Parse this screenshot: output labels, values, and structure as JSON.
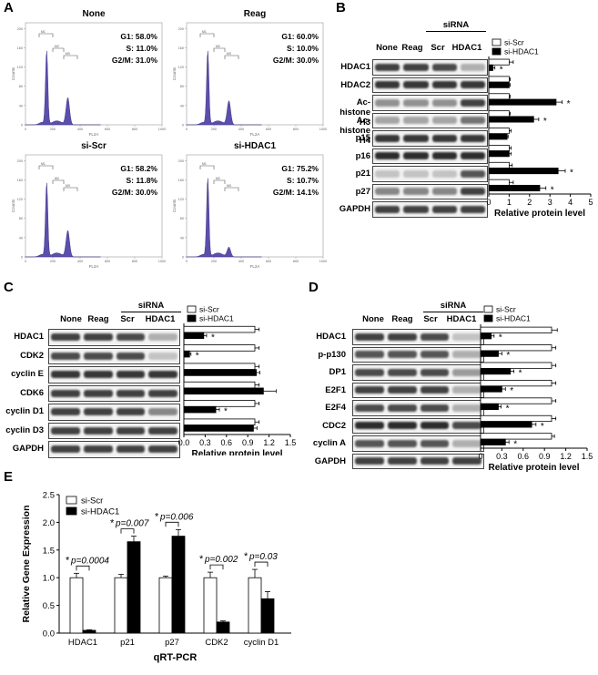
{
  "panels": {
    "a": {
      "letter": "A",
      "plots": [
        {
          "title": "None",
          "g1": "G1: 58.0%",
          "s": "S: 11.0%",
          "g2m": "G2/M: 31.0%"
        },
        {
          "title": "Reag",
          "g1": "G1: 60.0%",
          "s": "S: 10.0%",
          "g2m": "G2/M: 30.0%"
        },
        {
          "title": "si-Scr",
          "g1": "G1: 58.2%",
          "s": "S: 11.8%",
          "g2m": "G2/M: 30.0%"
        },
        {
          "title": "si-HDAC1",
          "g1": "G1: 75.2%",
          "s": "S: 10.7%",
          "g2m": "G2/M: 14.1%"
        }
      ],
      "axis_label_y": "Counts",
      "axis_label_x": "FL2A",
      "y_ticks": [
        "0",
        "40",
        "80",
        "120",
        "160",
        "200"
      ],
      "x_ticks": [
        "0",
        "200",
        "400",
        "600",
        "800",
        "1000"
      ],
      "gate_labels": [
        "M1",
        "M2",
        "M3"
      ],
      "peak_color": "#5b4fae"
    },
    "b": {
      "letter": "B",
      "sirna_label": "siRNA",
      "columns": [
        "None",
        "Reag",
        "Scr",
        "HDAC1"
      ],
      "rows": [
        "HDAC1",
        "HDAC2",
        "Ac-histone H3",
        "Ac-histone H4",
        "p15",
        "p16",
        "p21",
        "p27",
        "GAPDH"
      ],
      "legend": [
        "si-Scr",
        "si-HDAC1"
      ]
    },
    "c": {
      "letter": "C",
      "sirna_label": "siRNA",
      "columns": [
        "None",
        "Reag",
        "Scr",
        "HDAC1"
      ],
      "rows": [
        "HDAC1",
        "CDK2",
        "cyclin E",
        "CDK6",
        "cyclin D1",
        "cyclin D3",
        "GAPDH"
      ],
      "legend": [
        "si-Scr",
        "si-HDAC1"
      ]
    },
    "d": {
      "letter": "D",
      "sirna_label": "siRNA",
      "columns": [
        "None",
        "Reag",
        "Scr",
        "HDAC1"
      ],
      "rows": [
        "HDAC1",
        "p-p130",
        "DP1",
        "E2F1",
        "E2F4",
        "CDC2",
        "cyclin A",
        "GAPDH"
      ],
      "legend": [
        "si-Scr",
        "si-HDAC1"
      ]
    },
    "e": {
      "letter": "E"
    }
  },
  "chart_data": [
    {
      "id": "b",
      "type": "bar",
      "orientation": "horizontal",
      "categories": [
        "HDAC1",
        "HDAC2",
        "Ac-histone H3",
        "Ac-histone H4",
        "p15",
        "p16",
        "p21",
        "p27"
      ],
      "series": [
        {
          "name": "si-Scr",
          "values": [
            1.0,
            1.0,
            1.0,
            1.0,
            1.0,
            1.0,
            1.0,
            1.0
          ],
          "errors": [
            0.2,
            0.05,
            0.05,
            0.05,
            0.1,
            0.1,
            0.15,
            0.2
          ]
        },
        {
          "name": "si-HDAC1",
          "values": [
            0.2,
            1.0,
            3.3,
            2.2,
            0.9,
            1.0,
            3.4,
            2.5
          ],
          "errors": [
            0.1,
            0.05,
            0.3,
            0.25,
            0.05,
            0.1,
            0.35,
            0.3
          ]
        }
      ],
      "significant": [
        true,
        false,
        true,
        true,
        false,
        false,
        true,
        true
      ],
      "xlabel": "Relative protein level",
      "x_ticks": [
        "0",
        "1",
        "2",
        "3",
        "4",
        "5"
      ],
      "xlim": [
        0,
        5
      ],
      "legend": "top-right"
    },
    {
      "id": "c",
      "type": "bar",
      "orientation": "horizontal",
      "categories": [
        "HDAC1",
        "CDK2",
        "cyclin E",
        "CDK6",
        "cyclin D1",
        "cyclin D3"
      ],
      "series": [
        {
          "name": "si-Scr",
          "values": [
            1.0,
            1.0,
            1.0,
            1.0,
            1.0,
            1.0
          ],
          "errors": [
            0.06,
            0.06,
            0.06,
            0.06,
            0.06,
            0.06
          ]
        },
        {
          "name": "si-HDAC1",
          "values": [
            0.28,
            0.08,
            1.02,
            1.12,
            0.45,
            0.98
          ],
          "errors": [
            0.04,
            0.02,
            0.05,
            0.18,
            0.05,
            0.05
          ]
        }
      ],
      "significant": [
        true,
        true,
        false,
        false,
        true,
        false
      ],
      "xlabel": "Relative protein level",
      "x_ticks": [
        "0.0",
        "0.3",
        "0.6",
        "0.9",
        "1.2",
        "1.5"
      ],
      "xlim": [
        0,
        1.5
      ],
      "legend": "top-right"
    },
    {
      "id": "d",
      "type": "bar",
      "orientation": "horizontal",
      "categories": [
        "HDAC1",
        "p-p130",
        "DP1",
        "E2F1",
        "E2F4",
        "CDC2",
        "cyclin A"
      ],
      "series": [
        {
          "name": "si-Scr",
          "values": [
            1.0,
            1.0,
            1.0,
            1.0,
            1.0,
            1.0,
            1.0
          ],
          "errors": [
            0.08,
            0.06,
            0.06,
            0.06,
            0.06,
            0.06,
            0.04
          ]
        },
        {
          "name": "si-HDAC1",
          "values": [
            0.15,
            0.25,
            0.42,
            0.3,
            0.25,
            0.72,
            0.35
          ],
          "errors": [
            0.04,
            0.05,
            0.05,
            0.05,
            0.04,
            0.06,
            0.05
          ]
        }
      ],
      "significant": [
        true,
        true,
        true,
        true,
        true,
        true,
        true
      ],
      "xlabel": "Relative protein level",
      "x_ticks": [
        "0",
        "0.3",
        "0.6",
        "0.9",
        "1.2",
        "1.5"
      ],
      "xlim": [
        0,
        1.5
      ],
      "legend": "top-right"
    },
    {
      "id": "e",
      "type": "bar",
      "categories": [
        "HDAC1",
        "p21",
        "p27",
        "CDK2",
        "cyclin D1"
      ],
      "series": [
        {
          "name": "si-Scr",
          "values": [
            1.0,
            1.0,
            1.0,
            1.0,
            1.0
          ],
          "errors": [
            0.08,
            0.06,
            0.03,
            0.1,
            0.15
          ]
        },
        {
          "name": "si-HDAC1",
          "values": [
            0.05,
            1.65,
            1.75,
            0.2,
            0.62
          ],
          "errors": [
            0.01,
            0.1,
            0.12,
            0.02,
            0.13
          ]
        }
      ],
      "pvalues": [
        "p=0.0004",
        "p=0.007",
        "p=0.006",
        "p=0.002",
        "p=0.03"
      ],
      "ylabel": "Relative Gene Expression",
      "xlabel": "qRT-PCR",
      "y_ticks": [
        "0.0",
        "0.5",
        "1.0",
        "1.5",
        "2.0",
        "2.5"
      ],
      "ylim": [
        0,
        2.5
      ],
      "legend": "top-left"
    }
  ]
}
